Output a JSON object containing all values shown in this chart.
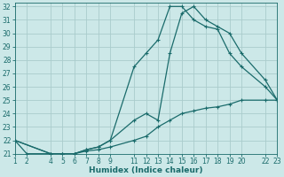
{
  "xlabel": "Humidex (Indice chaleur)",
  "bg_color": "#cce8e8",
  "grid_color": "#aacccc",
  "line_color": "#1a6b6b",
  "xlim": [
    1,
    23
  ],
  "ylim": [
    21,
    32.3
  ],
  "xticks": [
    1,
    2,
    4,
    5,
    6,
    7,
    8,
    9,
    11,
    12,
    13,
    14,
    15,
    16,
    17,
    18,
    19,
    20,
    22,
    23
  ],
  "yticks": [
    21,
    22,
    23,
    24,
    25,
    26,
    27,
    28,
    29,
    30,
    31,
    32
  ],
  "line1_x": [
    1,
    2,
    4,
    5,
    6,
    7,
    8,
    9,
    11,
    12,
    13,
    14,
    15,
    16,
    17,
    18,
    19,
    20,
    22,
    23
  ],
  "line1_y": [
    22.0,
    21.0,
    21.0,
    21.0,
    21.0,
    21.2,
    21.3,
    21.5,
    22.0,
    22.3,
    23.0,
    23.5,
    24.0,
    24.2,
    24.4,
    24.5,
    24.7,
    25.0,
    25.0,
    25.0
  ],
  "line2_x": [
    1,
    4,
    5,
    6,
    7,
    8,
    9,
    11,
    12,
    13,
    14,
    15,
    16,
    17,
    18,
    19,
    20,
    22,
    23
  ],
  "line2_y": [
    22.0,
    21.0,
    21.0,
    21.0,
    21.3,
    21.5,
    22.0,
    23.5,
    24.0,
    23.5,
    28.5,
    31.5,
    32.0,
    31.0,
    30.5,
    30.0,
    28.5,
    26.5,
    25.0
  ],
  "line3_x": [
    1,
    4,
    5,
    6,
    7,
    8,
    9,
    11,
    12,
    13,
    14,
    15,
    16,
    17,
    18,
    19,
    20,
    22,
    23
  ],
  "line3_y": [
    22.0,
    21.0,
    21.0,
    21.0,
    21.3,
    21.5,
    22.0,
    27.5,
    28.5,
    29.5,
    32.0,
    32.0,
    31.0,
    30.5,
    30.3,
    28.5,
    27.5,
    26.0,
    25.0
  ]
}
